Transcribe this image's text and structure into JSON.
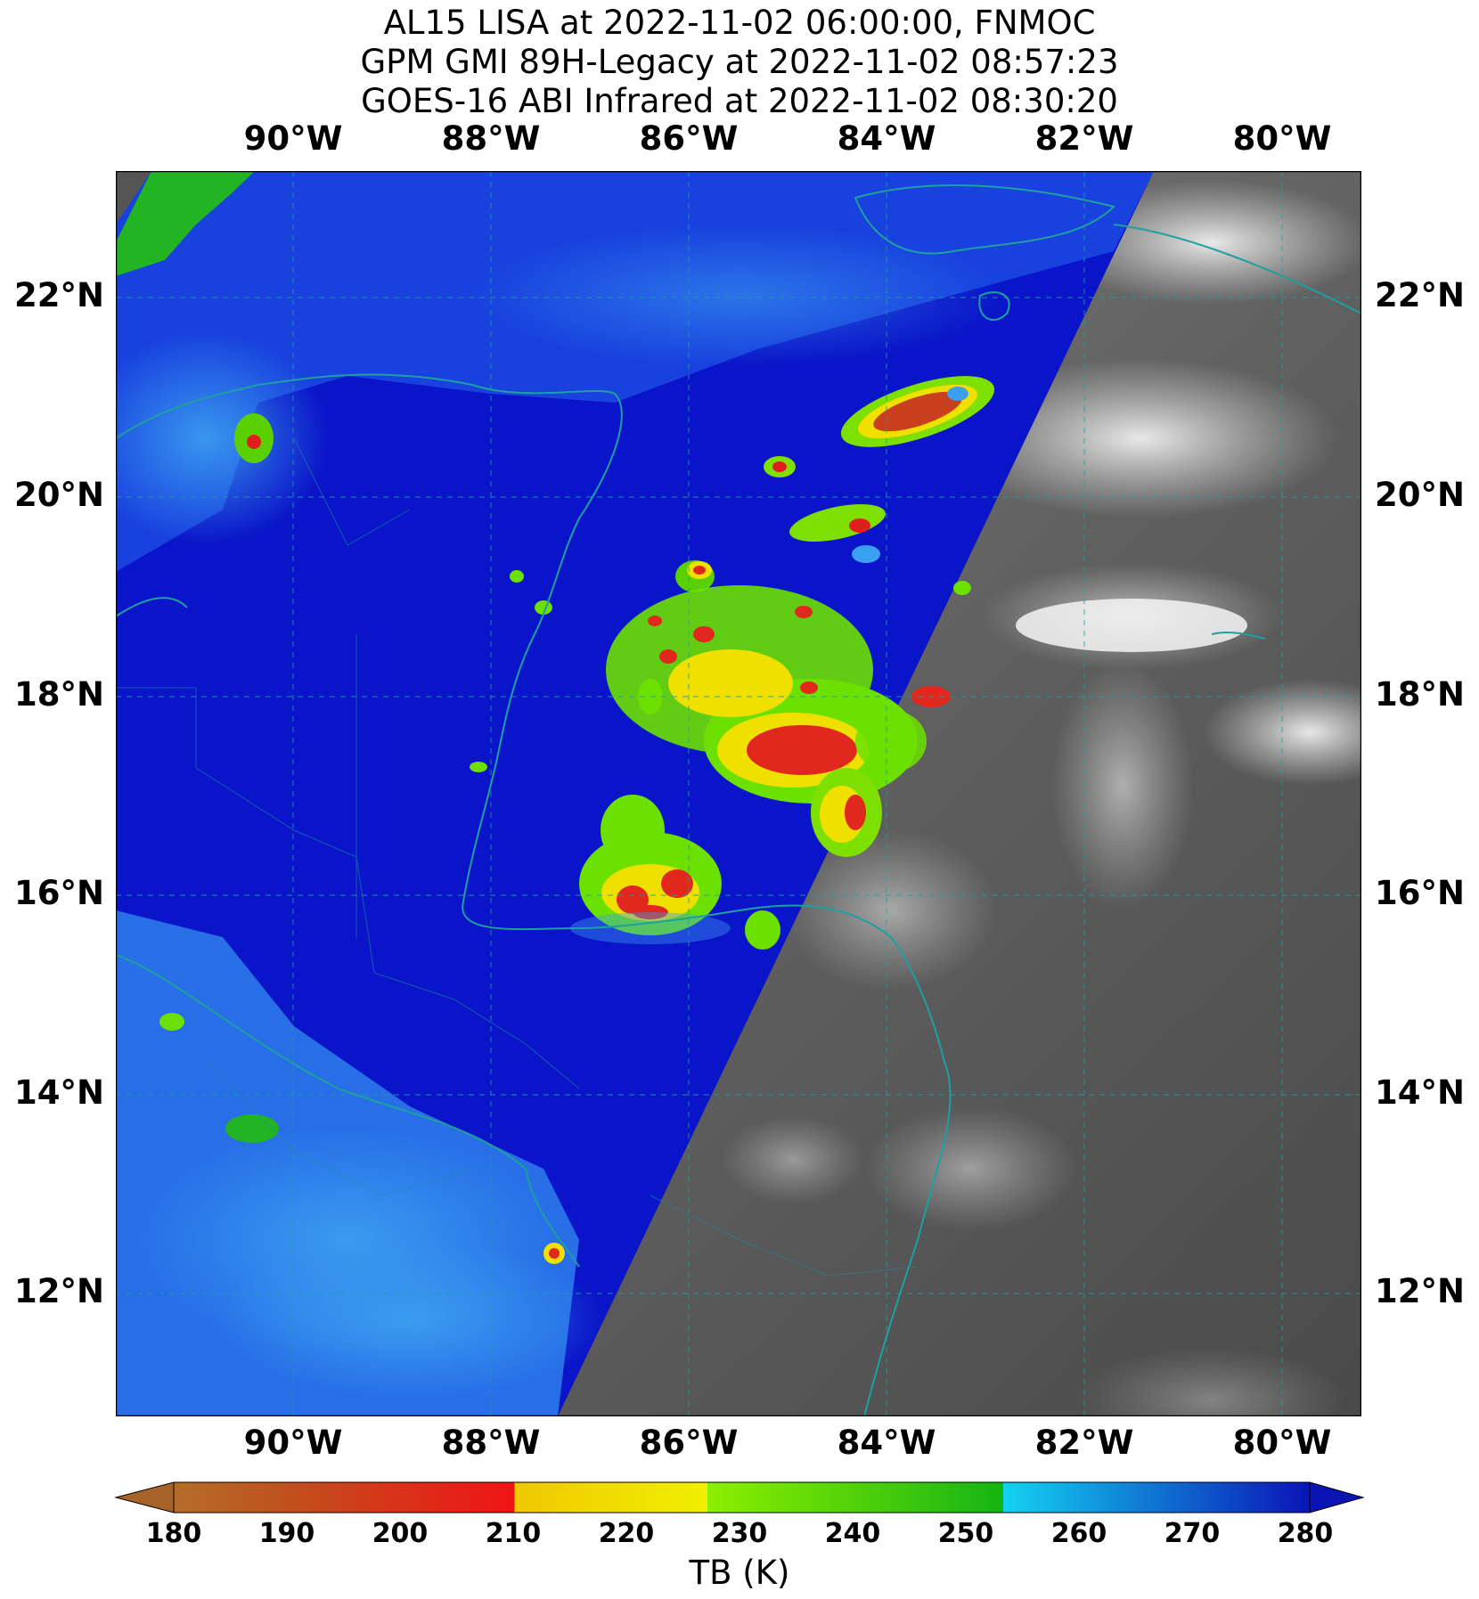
{
  "titles": [
    "AL15 LISA at 2022-11-02 06:00:00, FNMOC",
    "GPM GMI 89H-Legacy at 2022-11-02 08:57:23",
    "GOES-16 ABI Infrared at 2022-11-02 08:30:20"
  ],
  "lon_ticks": [
    "90°W",
    "88°W",
    "86°W",
    "84°W",
    "82°W",
    "80°W"
  ],
  "lat_ticks": [
    "22°N",
    "20°N",
    "18°N",
    "16°N",
    "14°N",
    "12°N"
  ],
  "colorbar": {
    "label": "TB (K)",
    "ticks": [
      "180",
      "190",
      "200",
      "210",
      "220",
      "230",
      "240",
      "250",
      "260",
      "270",
      "280"
    ],
    "range": [
      180,
      280
    ]
  },
  "colors": {
    "ocean_deep": "#0a14c8",
    "ocean_mid": "#1e50e6",
    "ocean_light": "#3ca0f0",
    "coast": "#1ea0a0",
    "ir_gray": "#5a5a5a"
  }
}
